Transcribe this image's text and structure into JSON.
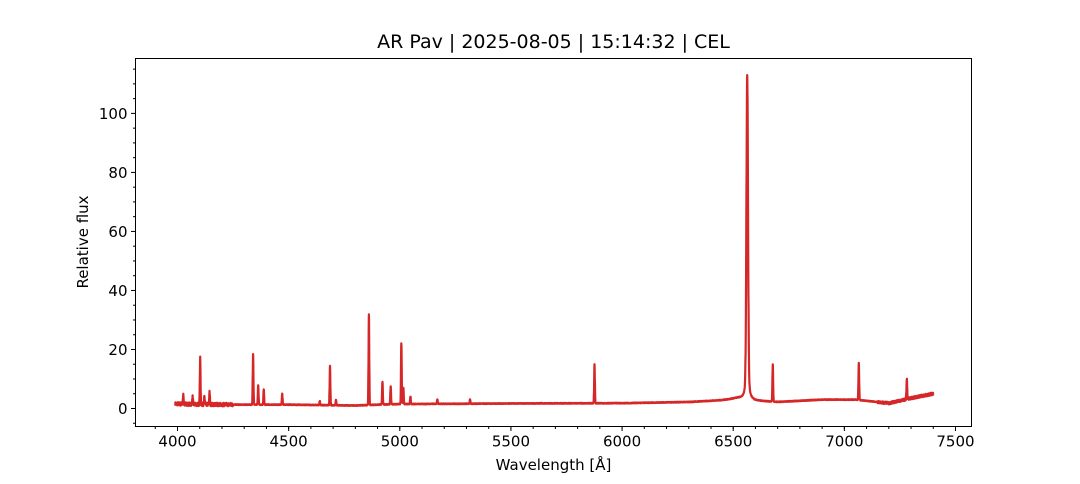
{
  "chart_data": {
    "type": "line",
    "title": "AR Pav | 2025-08-05 | 15:14:32 | CEL",
    "xlabel": "Wavelength [Å]",
    "ylabel": "Relative flux",
    "xlim": [
      3811,
      7572
    ],
    "ylim": [
      -6.1,
      118.6
    ],
    "xticks": [
      4000,
      4500,
      5000,
      5500,
      6000,
      6500,
      7000,
      7500
    ],
    "yticks": [
      0,
      20,
      40,
      60,
      80,
      100
    ],
    "grid": false,
    "line_color": "#d62728",
    "continuum": {
      "x": [
        3990,
        4100,
        4300,
        4500,
        4700,
        4800,
        4900,
        5000,
        5500,
        6000,
        6300,
        6450,
        6520,
        6600,
        6700,
        6900,
        7050,
        7150,
        7200,
        7300,
        7400
      ],
      "y": [
        1.6,
        1.4,
        1.3,
        1.3,
        1.1,
        1.0,
        1.3,
        1.5,
        1.7,
        1.8,
        2.2,
        2.8,
        3.5,
        2.6,
        2.2,
        3.0,
        3.0,
        2.2,
        1.8,
        3.5,
        5.0
      ]
    },
    "emission_lines": [
      {
        "x": 4026,
        "peak": 4.5
      },
      {
        "x": 4068,
        "peak": 4
      },
      {
        "x": 4102,
        "peak": 17
      },
      {
        "x": 4121,
        "peak": 4
      },
      {
        "x": 4144,
        "peak": 5.5
      },
      {
        "x": 4340,
        "peak": 18.5
      },
      {
        "x": 4363,
        "peak": 8
      },
      {
        "x": 4388,
        "peak": 6.5
      },
      {
        "x": 4471,
        "peak": 5
      },
      {
        "x": 4640,
        "peak": 2.5
      },
      {
        "x": 4686,
        "peak": 14.5
      },
      {
        "x": 4713,
        "peak": 3
      },
      {
        "x": 4861,
        "peak": 32
      },
      {
        "x": 4922,
        "peak": 9
      },
      {
        "x": 4959,
        "peak": 7.5
      },
      {
        "x": 5007,
        "peak": 22
      },
      {
        "x": 5016,
        "peak": 7
      },
      {
        "x": 5048,
        "peak": 4
      },
      {
        "x": 5169,
        "peak": 3
      },
      {
        "x": 5316,
        "peak": 3
      },
      {
        "x": 5876,
        "peak": 15
      },
      {
        "x": 6563,
        "peak": 113
      },
      {
        "x": 6678,
        "peak": 15
      },
      {
        "x": 7065,
        "peak": 15.5
      },
      {
        "x": 7281,
        "peak": 10
      }
    ]
  }
}
